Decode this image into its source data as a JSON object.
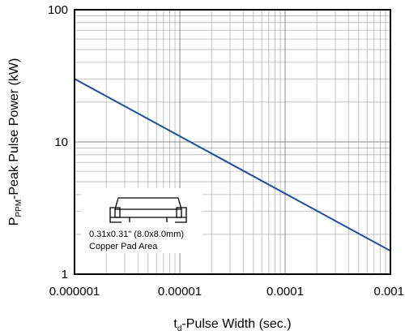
{
  "chart_data": {
    "type": "line",
    "xscale": "log",
    "yscale": "log",
    "xlim": [
      1e-06,
      0.001
    ],
    "ylim": [
      1,
      100
    ],
    "grid": true,
    "x_ticks": [
      "0.000001",
      "0.00001",
      "0.0001",
      "0.001"
    ],
    "y_ticks": [
      "1",
      "10",
      "100"
    ],
    "xlabel": {
      "main": "t",
      "sub": "d",
      "rest": "-Pulse Width (sec.)"
    },
    "ylabel": {
      "main": "P",
      "sub": "PPM",
      "rest": "-Peak Pulse Power (kW)"
    },
    "series": [
      {
        "x": [
          1e-06,
          0.001
        ],
        "y": [
          30,
          1.5
        ],
        "color": "#1f4e9c"
      }
    ],
    "inset": {
      "line1": "0.31x0.31\" (8.0x8.0mm)",
      "line2": "Copper Pad Area"
    }
  }
}
